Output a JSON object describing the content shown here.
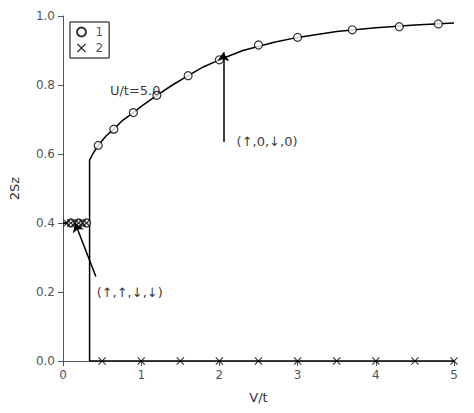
{
  "chart_data": {
    "type": "line",
    "xlabel": "V/t",
    "ylabel": "2Sz",
    "xlim": [
      0,
      5
    ],
    "ylim": [
      0,
      1
    ],
    "xticks": [
      0,
      1,
      2,
      3,
      4,
      5
    ],
    "yticks": [
      {
        "value": 0,
        "label": "0.0"
      },
      0.2,
      0.4,
      0.6,
      0.8,
      {
        "value": 1,
        "label": "1.0"
      }
    ],
    "grid": false,
    "legend": "upper left",
    "series": [
      {
        "type": "line",
        "color": "black",
        "line_style": "solid",
        "x": [
          0.0,
          0.1,
          0.2,
          0.3,
          0.34,
          0.34,
          0.38,
          0.45,
          0.55,
          0.65,
          0.75,
          0.9,
          1.0,
          1.2,
          1.4,
          1.6,
          1.8,
          2.0,
          2.3,
          2.7,
          3.0,
          3.5,
          4.0,
          4.5,
          5.0
        ],
        "values": [
          0.4,
          0.4,
          0.4,
          0.4,
          0.4,
          0.582,
          0.6,
          0.625,
          0.652,
          0.672,
          0.695,
          0.72,
          0.738,
          0.77,
          0.8,
          0.827,
          0.853,
          0.873,
          0.9,
          0.924,
          0.938,
          0.955,
          0.966,
          0.974,
          0.98
        ]
      },
      {
        "name": "1",
        "type": "scatter",
        "color": "black",
        "marker": "circle",
        "x": [
          0.1,
          0.2,
          0.3,
          0.45,
          0.65,
          0.9,
          1.2,
          1.6,
          2.0,
          2.5,
          3.0,
          3.7,
          4.3,
          4.8
        ],
        "values": [
          0.4,
          0.4,
          0.4,
          0.625,
          0.672,
          0.72,
          0.77,
          0.827,
          0.873,
          0.916,
          0.938,
          0.96,
          0.969,
          0.977
        ]
      },
      {
        "type": "line",
        "color": "black",
        "line_style": "solid",
        "x": [
          0.0,
          0.1,
          0.2,
          0.3,
          0.34,
          0.34,
          0.5,
          1.0,
          1.5,
          2.0,
          2.5,
          3.0,
          3.5,
          4.0,
          4.5,
          5.0
        ],
        "values": [
          0.4,
          0.4,
          0.4,
          0.4,
          0.4,
          0.0,
          0.0,
          0.0,
          0.0,
          0.0,
          0.0,
          0.0,
          0.0,
          0.0,
          0.0,
          0.0
        ]
      },
      {
        "name": "2",
        "type": "scatter",
        "color": "black",
        "marker": "x",
        "x": [
          0.05,
          0.1,
          0.15,
          0.2,
          0.25,
          0.3,
          0.5,
          1.0,
          1.5,
          2.0,
          2.5,
          3.0,
          3.5,
          4.0,
          4.5,
          5.0
        ],
        "values": [
          0.4,
          0.4,
          0.4,
          0.4,
          0.4,
          0.4,
          0.0,
          0.0,
          0.0,
          0.0,
          0.0,
          0.0,
          0.0,
          0.0,
          0.0,
          0.0
        ]
      }
    ],
    "annotations": [
      {
        "text": "U/t=5.0",
        "x": 0.6,
        "y": 0.785
      },
      {
        "text": "(↑,0,↓,0)",
        "x": 2.22,
        "y": 0.635,
        "arrow": {
          "from": [
            2.05,
            0.635
          ],
          "to": [
            2.05,
            0.895
          ]
        }
      },
      {
        "text": "(↑,↑,↓,↓)",
        "x": 0.43,
        "y": 0.2,
        "arrow": {
          "from": [
            0.42,
            0.245
          ],
          "to": [
            0.155,
            0.4
          ]
        }
      }
    ]
  }
}
